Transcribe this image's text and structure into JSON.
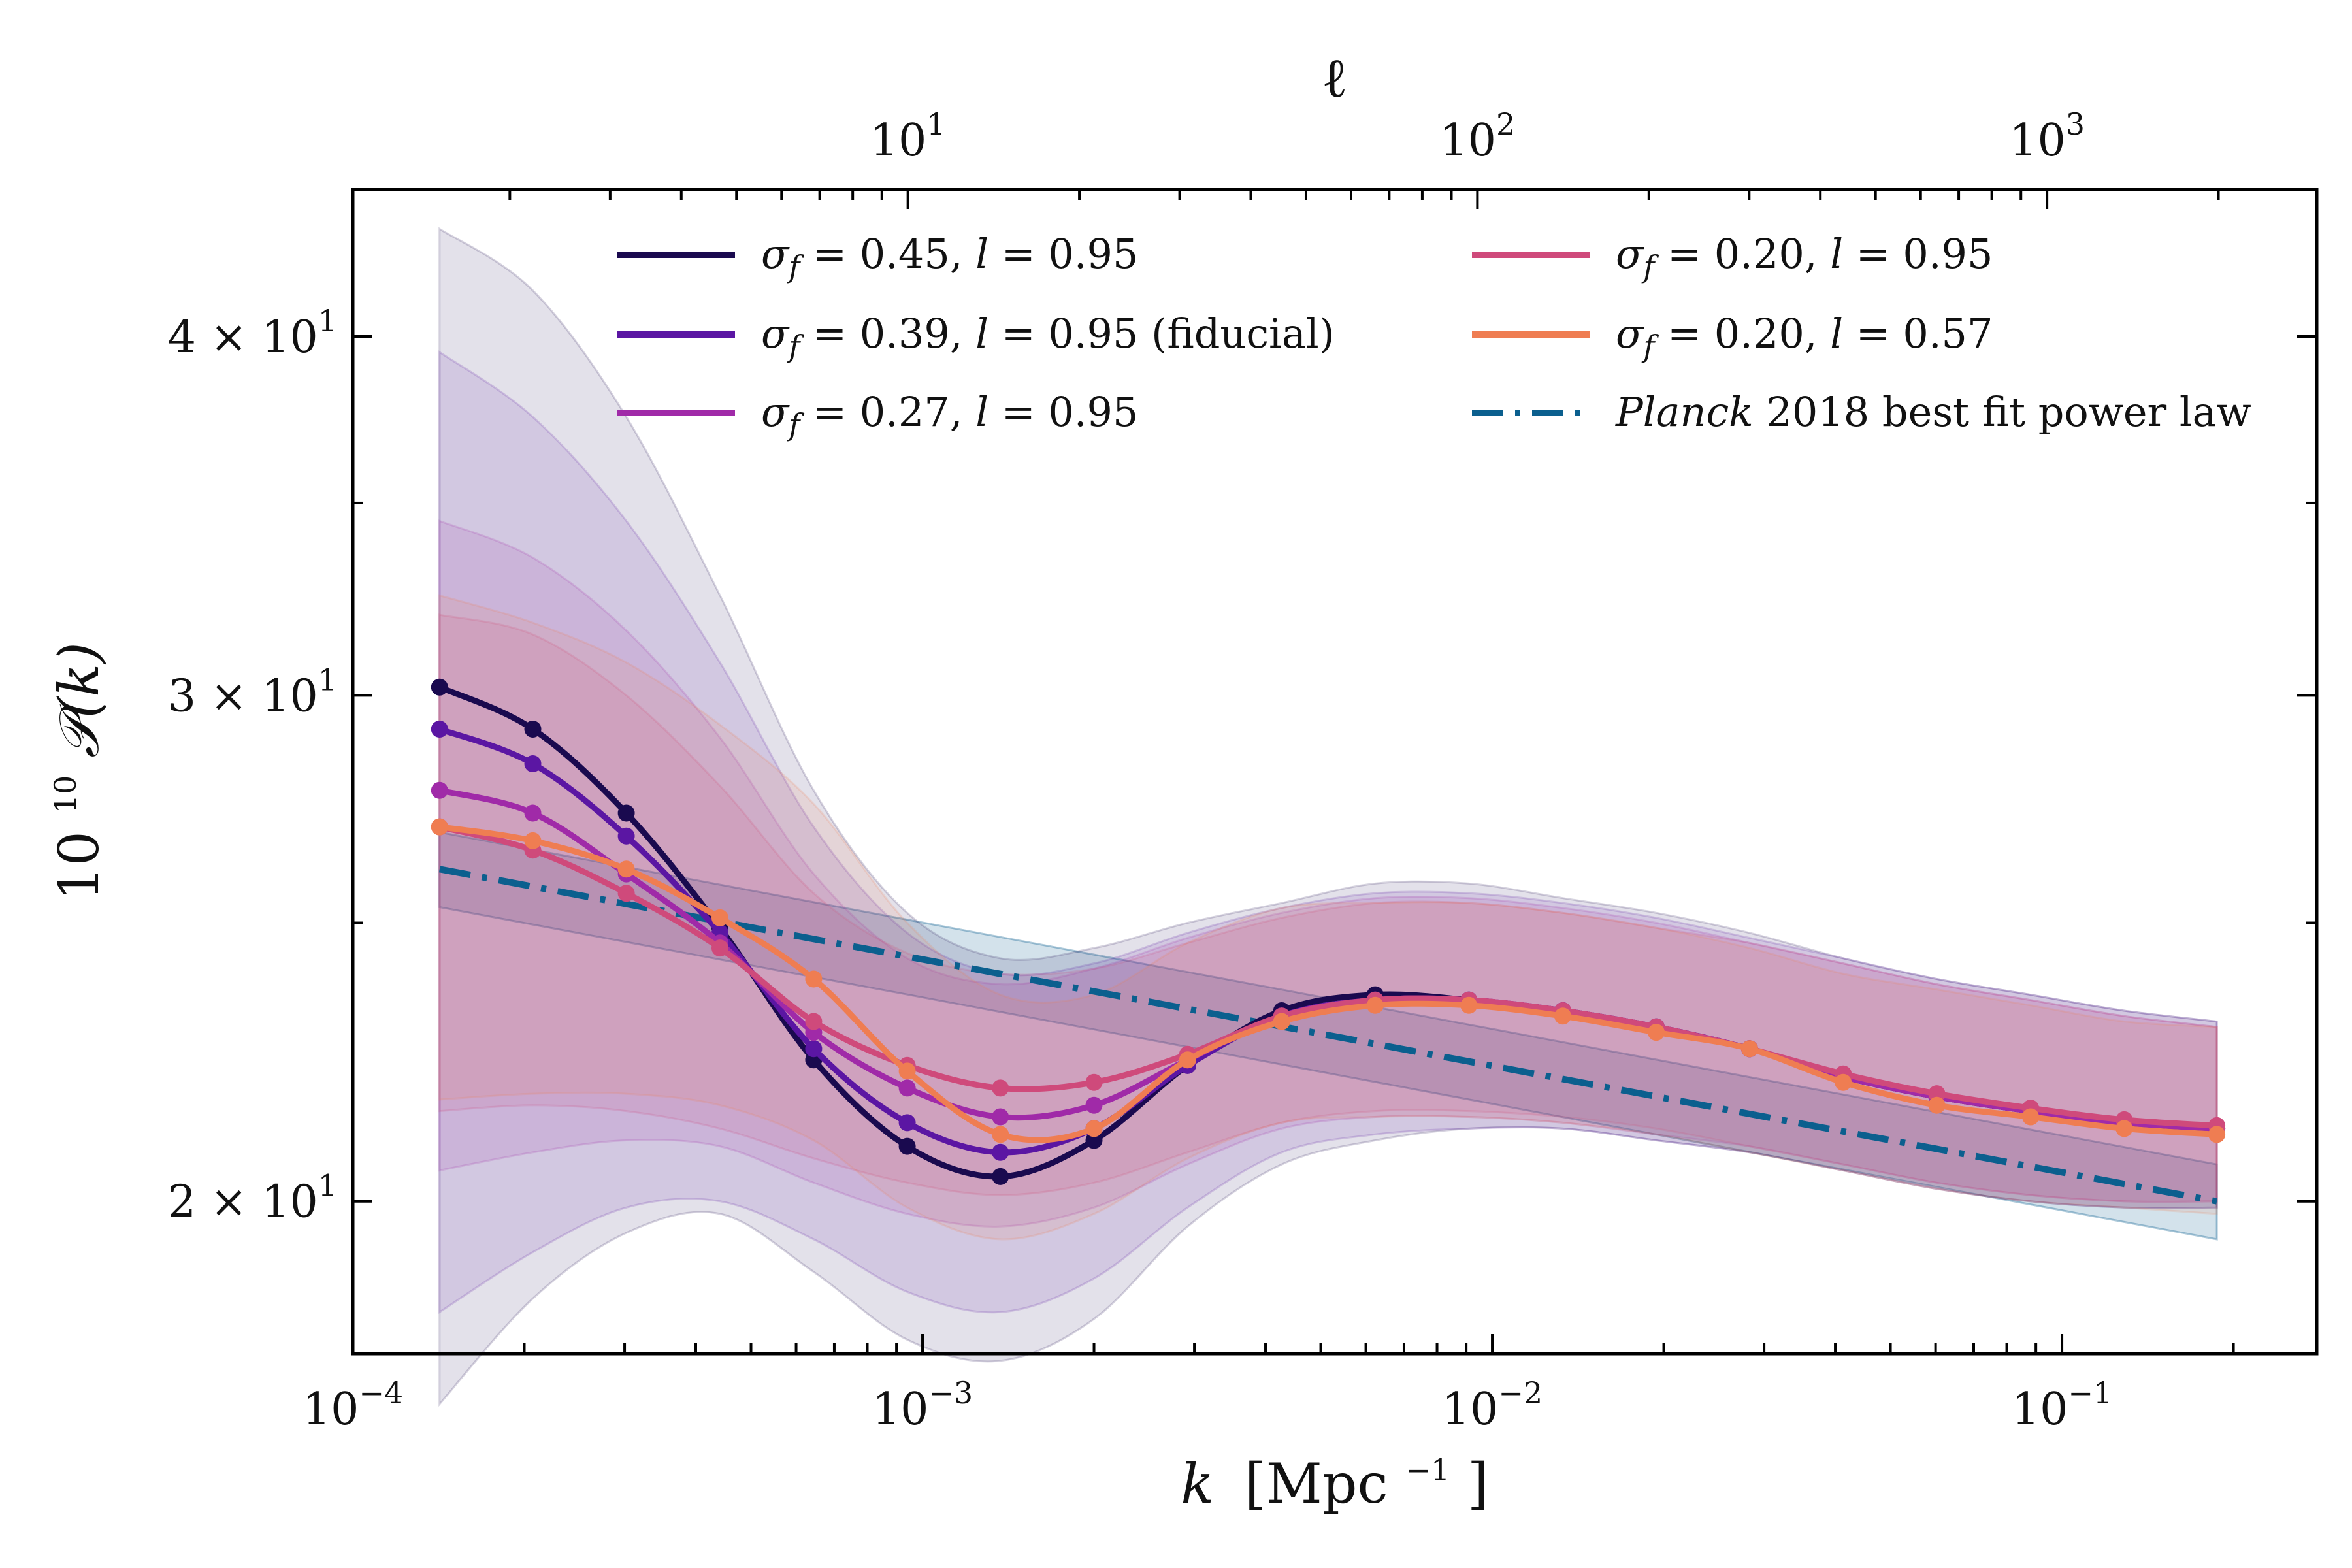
{
  "chart_data": {
    "type": "line",
    "x_axis": {
      "label_var": "k",
      "label_unit": "[Mpc",
      "label_unit_exp": "−1",
      "label_unit_close": "]",
      "scale": "log",
      "range": [
        0.0001,
        0.28
      ],
      "ticks": [
        {
          "base": "10",
          "exp": "−4",
          "value": 0.0001
        },
        {
          "base": "10",
          "exp": "−3",
          "value": 0.001
        },
        {
          "base": "10",
          "exp": "−2",
          "value": 0.01
        },
        {
          "base": "10",
          "exp": "−1",
          "value": 0.1
        }
      ]
    },
    "top_axis": {
      "label": "ℓ",
      "scale": "log",
      "range": [
        1.06,
        2976
      ],
      "ticks": [
        {
          "base": "10",
          "exp": "1",
          "value": 10
        },
        {
          "base": "10",
          "exp": "2",
          "value": 100
        },
        {
          "base": "10",
          "exp": "3",
          "value": 1000
        }
      ]
    },
    "y_axis": {
      "label_base": "10",
      "label_exp": "10",
      "label_func": "𝒫(k)",
      "scale": "log",
      "range": [
        17.7,
        45.0
      ],
      "ticks": [
        {
          "text": "2 × 10",
          "exp": "1",
          "value": 20
        },
        {
          "text": "3 × 10",
          "exp": "1",
          "value": 30
        },
        {
          "text": "4 × 10",
          "exp": "1",
          "value": 40
        }
      ]
    },
    "x": [
      0.000142,
      0.000207,
      0.000302,
      0.000441,
      0.000644,
      0.00094,
      0.00137,
      0.002,
      0.00292,
      0.00427,
      0.00623,
      0.0091,
      0.0133,
      0.0194,
      0.0283,
      0.0413,
      0.0603,
      0.0881,
      0.1286,
      0.187
    ],
    "series": [
      {
        "name": "σ_f = 0.45, l = 0.95",
        "name_parts": {
          "sigma": "σ",
          "sub": "f",
          "mid": " = 0.45, ",
          "l": "l",
          "rest": " = 0.95",
          "suffix": ""
        },
        "color": "#1a0a4f",
        "values": [
          30.2,
          29.2,
          27.3,
          24.9,
          22.4,
          20.9,
          20.4,
          21.0,
          22.3,
          23.3,
          23.6,
          23.5,
          23.3,
          23.0,
          22.6,
          22.1,
          21.75,
          21.5,
          21.3,
          21.2
        ],
        "band_lower": [
          17.0,
          18.5,
          19.5,
          19.8,
          18.9,
          17.9,
          17.6,
          18.2,
          19.6,
          20.6,
          21.0,
          21.2,
          21.2,
          21.0,
          20.8,
          20.5,
          20.2,
          20.0,
          19.9,
          19.9
        ],
        "band_upper": [
          43.6,
          41.5,
          37.5,
          32.5,
          27.8,
          25.2,
          24.3,
          24.5,
          25.0,
          25.4,
          25.8,
          25.8,
          25.5,
          25.2,
          24.8,
          24.3,
          23.9,
          23.6,
          23.3,
          23.1
        ]
      },
      {
        "name": "σ_f = 0.39, l = 0.95 (fiducial)",
        "name_parts": {
          "sigma": "σ",
          "sub": "f",
          "mid": " = 0.39, ",
          "l": "l",
          "rest": " = 0.95",
          "suffix": " (fiducial)"
        },
        "color": "#5b16a3",
        "values": [
          29.2,
          28.4,
          26.8,
          24.8,
          22.6,
          21.3,
          20.8,
          21.2,
          22.3,
          23.2,
          23.5,
          23.5,
          23.3,
          23.0,
          22.6,
          22.1,
          21.75,
          21.5,
          21.3,
          21.2
        ],
        "band_lower": [
          18.3,
          19.2,
          19.9,
          20.0,
          19.4,
          18.6,
          18.3,
          18.8,
          19.9,
          20.8,
          21.1,
          21.2,
          21.2,
          21.0,
          20.8,
          20.5,
          20.2,
          20.0,
          19.9,
          19.9
        ],
        "band_upper": [
          39.5,
          37.5,
          34.5,
          30.8,
          27.0,
          24.8,
          24.0,
          24.2,
          24.8,
          25.3,
          25.6,
          25.6,
          25.4,
          25.1,
          24.7,
          24.3,
          23.9,
          23.6,
          23.3,
          23.1
        ]
      },
      {
        "name": "σ_f = 0.27, l = 0.95",
        "name_parts": {
          "sigma": "σ",
          "sub": "f",
          "mid": " = 0.27, ",
          "l": "l",
          "rest": " = 0.95",
          "suffix": ""
        },
        "color": "#a02aa8",
        "values": [
          27.8,
          27.3,
          26.0,
          24.6,
          22.9,
          21.9,
          21.4,
          21.6,
          22.4,
          23.2,
          23.5,
          23.5,
          23.3,
          23.0,
          22.6,
          22.1,
          21.75,
          21.5,
          21.3,
          21.2
        ],
        "band_lower": [
          20.5,
          20.8,
          21.0,
          20.9,
          20.3,
          19.8,
          19.6,
          19.9,
          20.6,
          21.2,
          21.4,
          21.4,
          21.3,
          21.1,
          20.9,
          20.6,
          20.3,
          20.1,
          20.0,
          20.0
        ],
        "band_upper": [
          34.5,
          33.5,
          31.6,
          29.0,
          26.0,
          24.3,
          23.8,
          24.1,
          24.7,
          25.2,
          25.5,
          25.5,
          25.3,
          25.0,
          24.6,
          24.2,
          23.8,
          23.5,
          23.2,
          23.0
        ]
      },
      {
        "name": "σ_f = 0.20, l = 0.95",
        "name_parts": {
          "sigma": "σ",
          "sub": "f",
          "mid": " = 0.20, ",
          "l": "l",
          "rest": " = 0.95",
          "suffix": ""
        },
        "color": "#cf4a7b",
        "values": [
          27.0,
          26.5,
          25.6,
          24.5,
          23.1,
          22.3,
          21.9,
          22.0,
          22.5,
          23.2,
          23.5,
          23.5,
          23.3,
          23.0,
          22.6,
          22.15,
          21.8,
          21.55,
          21.35,
          21.25
        ],
        "band_lower": [
          21.5,
          21.6,
          21.5,
          21.2,
          20.7,
          20.3,
          20.1,
          20.3,
          20.8,
          21.3,
          21.5,
          21.5,
          21.4,
          21.2,
          20.9,
          20.6,
          20.3,
          20.1,
          20.0,
          20.0
        ],
        "band_upper": [
          32.0,
          31.5,
          30.0,
          27.9,
          25.6,
          24.4,
          24.0,
          24.1,
          24.6,
          25.1,
          25.4,
          25.4,
          25.2,
          24.9,
          24.6,
          24.2,
          23.8,
          23.5,
          23.2,
          23.0
        ]
      },
      {
        "name": "σ_f = 0.20, l = 0.57",
        "name_parts": {
          "sigma": "σ",
          "sub": "f",
          "mid": " = 0.20, ",
          "l": "l",
          "rest": " = 0.57",
          "suffix": ""
        },
        "color": "#ef7d52",
        "values": [
          27.0,
          26.7,
          26.1,
          25.1,
          23.9,
          22.2,
          21.1,
          21.2,
          22.4,
          23.1,
          23.4,
          23.4,
          23.2,
          22.9,
          22.6,
          22.0,
          21.6,
          21.4,
          21.2,
          21.1
        ],
        "band_lower": [
          21.7,
          21.8,
          21.8,
          21.6,
          21.0,
          19.9,
          19.4,
          19.8,
          20.7,
          21.3,
          21.4,
          21.4,
          21.3,
          21.1,
          20.8,
          20.5,
          20.2,
          20.0,
          19.9,
          19.8
        ],
        "band_upper": [
          32.5,
          31.8,
          30.8,
          29.3,
          27.5,
          25.0,
          23.6,
          23.6,
          24.6,
          25.3,
          25.4,
          25.4,
          25.2,
          24.9,
          24.5,
          24.0,
          23.7,
          23.4,
          23.1,
          23.0
        ]
      }
    ],
    "planck": {
      "name_ital": "Planck",
      "name_rest": " 2018 best fit power law",
      "color": "#0b5f8e",
      "A_value": 26.1,
      "A_at_k": 0.000142,
      "end_value": 20.0,
      "end_at_k": 0.187,
      "band_frac": 0.03
    },
    "legend": {
      "placement": "top",
      "columns": 2
    },
    "grid": false
  }
}
